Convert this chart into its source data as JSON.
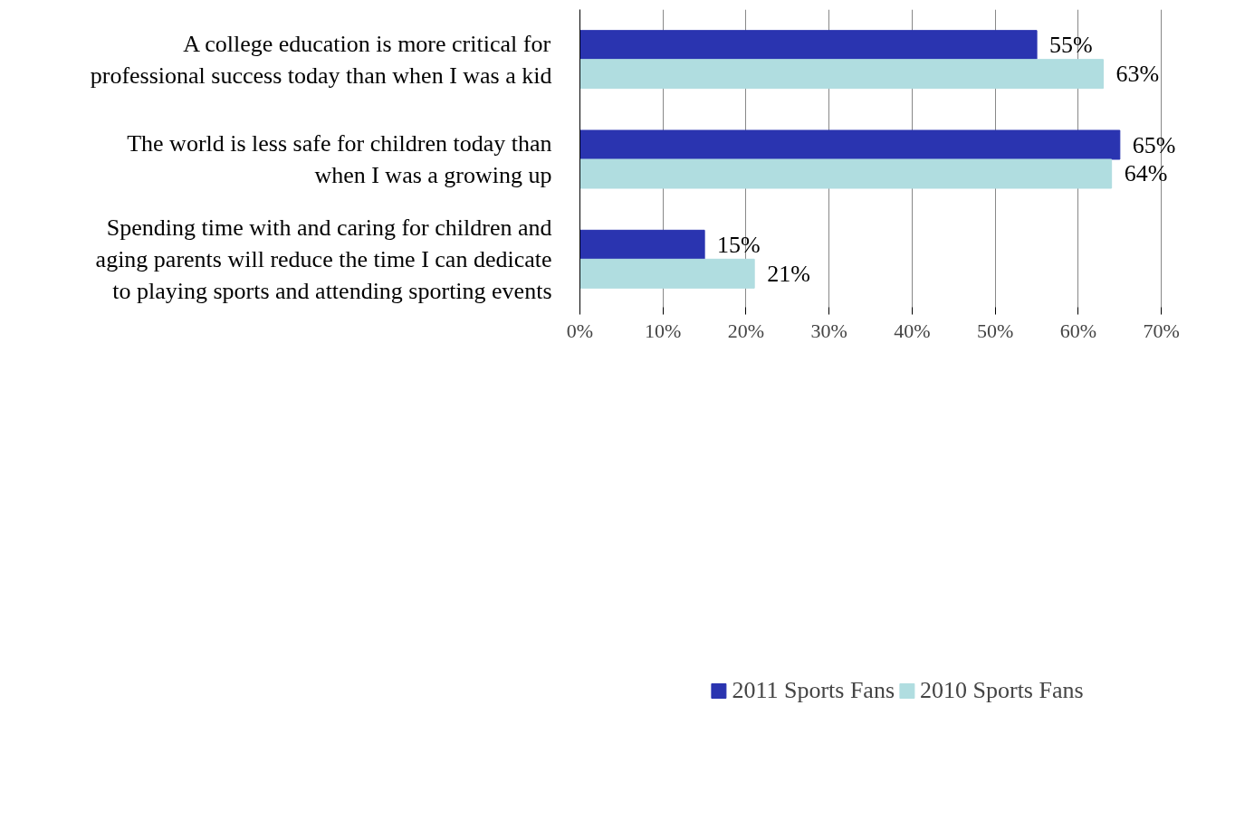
{
  "chart_data": {
    "type": "bar",
    "orientation": "horizontal",
    "categories": [
      "A college education is more critical for professional success today than when I was a kid",
      "The world is less safe for children today than when I was a growing up",
      "Spending time with and caring for children and aging parents will reduce the time I can dedicate to playing sports and attending sporting events"
    ],
    "series": [
      {
        "name": "2011 Sports Fans",
        "color": "#2a34b0",
        "values": [
          55,
          65,
          15
        ],
        "value_labels": [
          "55%",
          "65%",
          "15%"
        ]
      },
      {
        "name": "2010 Sports Fans",
        "color": "#b0dde0",
        "values": [
          63,
          64,
          21
        ],
        "value_labels": [
          "63%",
          "64%",
          "21%"
        ]
      }
    ],
    "xlim": [
      0,
      70
    ],
    "xticks": [
      {
        "value": 0,
        "label": "0%"
      },
      {
        "value": 10,
        "label": "10%"
      },
      {
        "value": 20,
        "label": "20%"
      },
      {
        "value": 30,
        "label": "30%"
      },
      {
        "value": 40,
        "label": "40%"
      },
      {
        "value": 50,
        "label": "50%"
      },
      {
        "value": 60,
        "label": "60%"
      },
      {
        "value": 70,
        "label": "70%"
      }
    ],
    "grid": "x",
    "legend": "bottom"
  }
}
